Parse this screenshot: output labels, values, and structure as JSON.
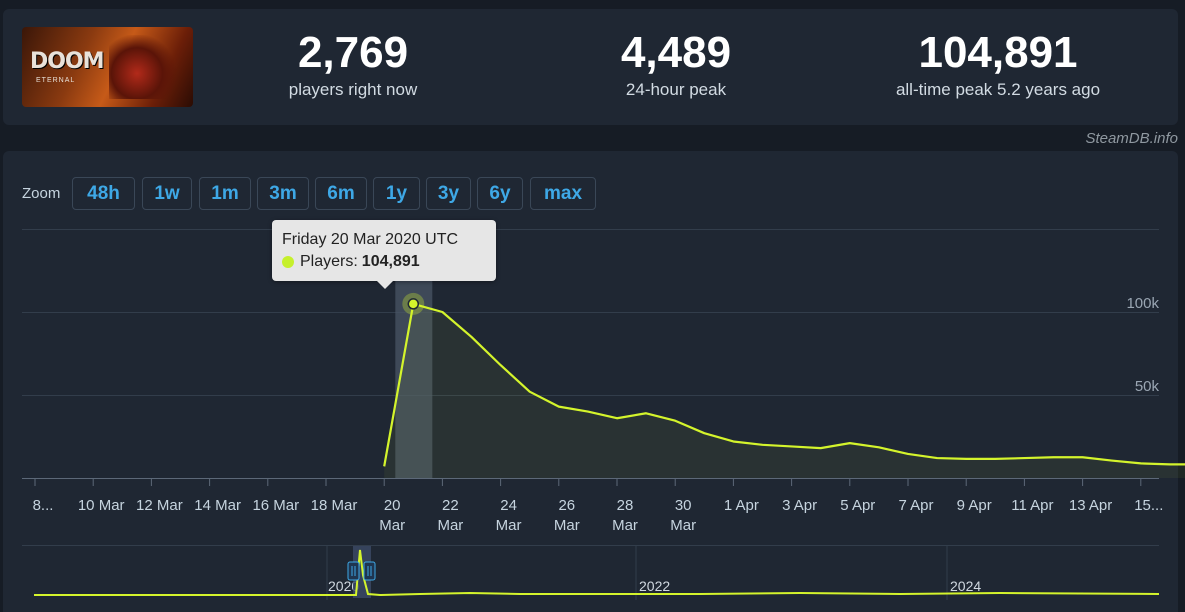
{
  "game": {
    "logo_text": "DOOM",
    "logo_subtext": "ETERNAL"
  },
  "stats": [
    {
      "value": "2,769",
      "label": "players right now"
    },
    {
      "value": "4,489",
      "label": "24-hour peak"
    },
    {
      "value": "104,891",
      "label": "all-time peak 5.2 years ago"
    }
  ],
  "watermark": "SteamDB.info",
  "zoom": {
    "label": "Zoom",
    "options": [
      "48h",
      "1w",
      "1m",
      "3m",
      "6m",
      "1y",
      "3y",
      "6y",
      "max"
    ]
  },
  "tooltip": {
    "date": "Friday 20 Mar 2020 UTC",
    "series_label": "Players:",
    "value": "104,891"
  },
  "colors": {
    "line": "#d4f42c",
    "accent": "#3ea8e6",
    "background": "#1f2733"
  },
  "chart_data": {
    "type": "line",
    "x_tick_labels": [
      "8...",
      "10 Mar",
      "12 Mar",
      "14 Mar",
      "16 Mar",
      "18 Mar",
      "20 Mar",
      "22 Mar",
      "24 Mar",
      "26 Mar",
      "28 Mar",
      "30 Mar",
      "1 Apr",
      "3 Apr",
      "5 Apr",
      "7 Apr",
      "9 Apr",
      "11 Apr",
      "13 Apr",
      "15..."
    ],
    "y_tick_labels": [
      "100k",
      "50k"
    ],
    "y_ticks": [
      0,
      50000,
      100000
    ],
    "ylim": [
      0,
      150000
    ],
    "series": [
      {
        "name": "Players",
        "x": [
          "2020-03-19",
          "2020-03-20",
          "2020-03-21",
          "2020-03-22",
          "2020-03-23",
          "2020-03-24",
          "2020-03-25",
          "2020-03-26",
          "2020-03-27",
          "2020-03-28",
          "2020-03-29",
          "2020-03-30",
          "2020-03-31",
          "2020-04-01",
          "2020-04-02",
          "2020-04-03",
          "2020-04-04",
          "2020-04-05",
          "2020-04-06",
          "2020-04-07",
          "2020-04-08",
          "2020-04-09",
          "2020-04-10",
          "2020-04-11",
          "2020-04-12",
          "2020-04-13",
          "2020-04-14",
          "2020-04-15",
          "2020-04-16"
        ],
        "y": [
          7000,
          104891,
          100000,
          85000,
          68000,
          52000,
          43000,
          40000,
          36000,
          39000,
          34500,
          27000,
          22000,
          20000,
          19000,
          18000,
          21000,
          18500,
          14500,
          12000,
          11500,
          11500,
          12000,
          12500,
          12500,
          10500,
          8800,
          8200,
          8200
        ]
      }
    ],
    "highlight": {
      "x": "2020-03-20",
      "y": 104891
    },
    "navigator": {
      "year_labels": [
        "2020",
        "2022",
        "2024"
      ]
    }
  }
}
